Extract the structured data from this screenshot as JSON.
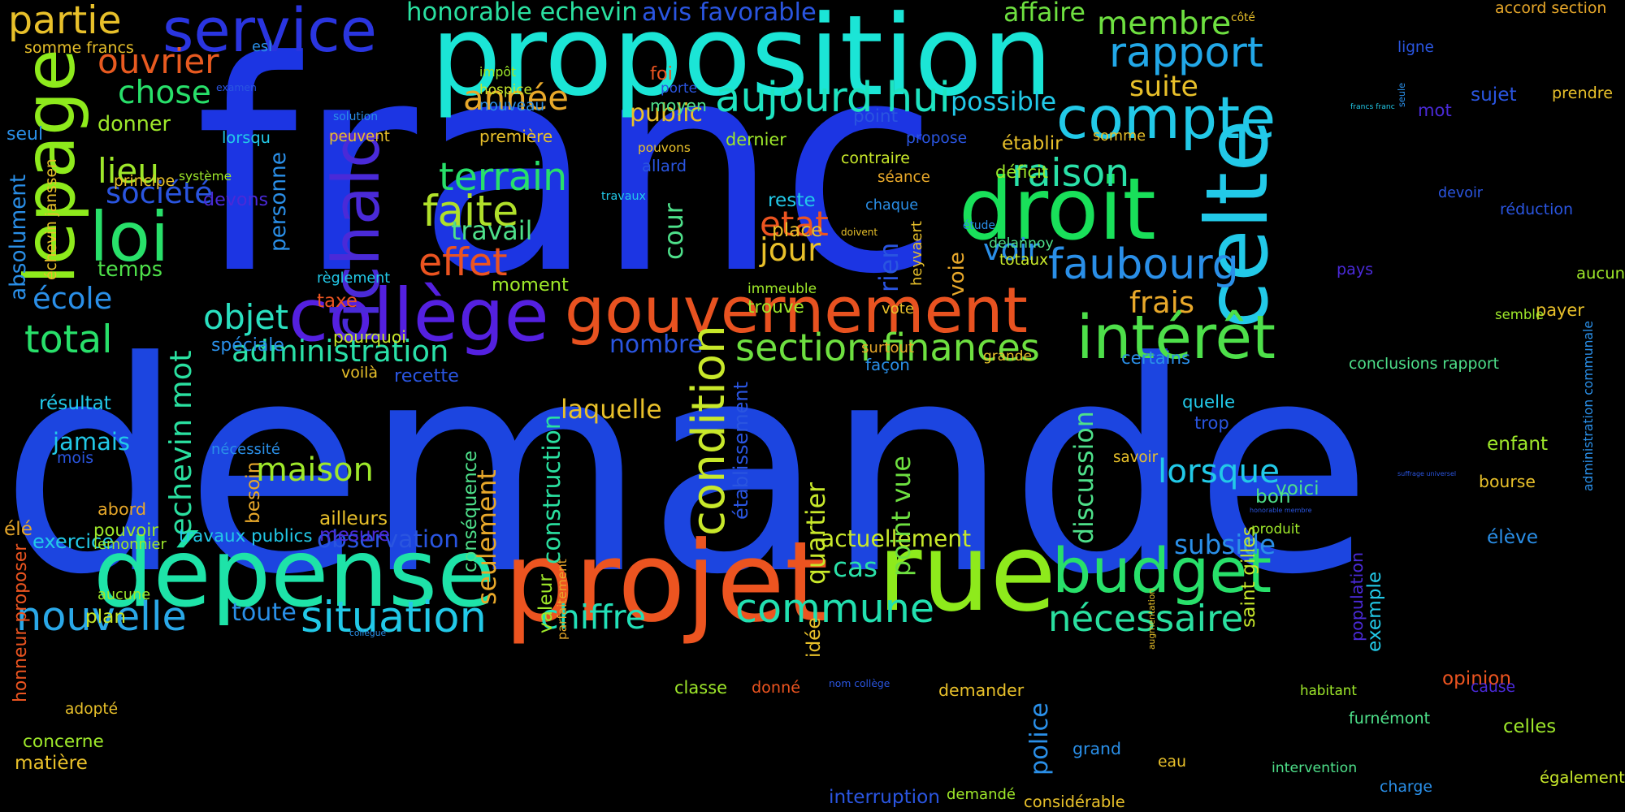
{
  "words": [
    {
      "text": "demande",
      "color": "#1c45e0"
    },
    {
      "text": "franc",
      "color": "#1c35e3"
    },
    {
      "text": "proposition",
      "color": "#1be5d6"
    },
    {
      "text": "droit",
      "color": "#19e05a"
    },
    {
      "text": "projet",
      "color": "#ec5420"
    },
    {
      "text": "rue",
      "color": "#8eea1c"
    },
    {
      "text": "dépense",
      "color": "#1ee3a8"
    },
    {
      "text": "gouvernement",
      "color": "#e85220"
    },
    {
      "text": "collège",
      "color": "#5420e0"
    },
    {
      "text": "compte",
      "color": "#22c9e8"
    },
    {
      "text": "celte",
      "color": "#22c9e8"
    },
    {
      "text": "lepage",
      "color": "#8eea1c"
    },
    {
      "text": "service",
      "color": "#2a35e0"
    },
    {
      "text": "budget",
      "color": "#28e06a"
    },
    {
      "text": "loi",
      "color": "#28e06a"
    },
    {
      "text": "richald",
      "color": "#4a2ad8"
    },
    {
      "text": "intérêt",
      "color": "#4ee04a"
    },
    {
      "text": "aujourd hui",
      "color": "#1ee3c0"
    },
    {
      "text": "faubourg",
      "color": "#2a8fe8"
    },
    {
      "text": "commune",
      "color": "#22e0b0"
    },
    {
      "text": "nouvelle",
      "color": "#2aa8e8"
    },
    {
      "text": "situation",
      "color": "#22c9e8"
    },
    {
      "text": "section finances",
      "color": "#6ee040"
    },
    {
      "text": "terrain",
      "color": "#28e06a"
    },
    {
      "text": "année",
      "color": "#e8a82a"
    },
    {
      "text": "effet",
      "color": "#ec5420"
    },
    {
      "text": "faite",
      "color": "#b0e02a"
    },
    {
      "text": "condition",
      "color": "#c8e82a"
    },
    {
      "text": "partie",
      "color": "#e8c02a"
    },
    {
      "text": "membre",
      "color": "#6ee040"
    },
    {
      "text": "rapport",
      "color": "#22a8e8"
    },
    {
      "text": "maison",
      "color": "#9ee82a"
    },
    {
      "text": "nécessaire",
      "color": "#2ae0a0"
    },
    {
      "text": "lorsque",
      "color": "#22c9e8"
    },
    {
      "text": "subside",
      "color": "#2a8fe8"
    },
    {
      "text": "total",
      "color": "#28e06a"
    },
    {
      "text": "raison",
      "color": "#2ae0a8"
    },
    {
      "text": "chose",
      "color": "#28e06a"
    },
    {
      "text": "ouvrier",
      "color": "#e85a20"
    },
    {
      "text": "etat",
      "color": "#ec5420"
    },
    {
      "text": "jour",
      "color": "#e8c02a"
    },
    {
      "text": "lieu",
      "color": "#9ee82a"
    },
    {
      "text": "société",
      "color": "#2a55e0"
    },
    {
      "text": "école",
      "color": "#2a8fe8"
    },
    {
      "text": "objet",
      "color": "#2ae0c0"
    },
    {
      "text": "administration",
      "color": "#2ae0a8"
    },
    {
      "text": "echevin mot",
      "color": "#2ae0a0"
    },
    {
      "text": "suite",
      "color": "#e8c02a"
    },
    {
      "text": "possible",
      "color": "#22c9e8"
    },
    {
      "text": "frais",
      "color": "#e8a82a"
    },
    {
      "text": "chiffre",
      "color": "#22e0b8"
    },
    {
      "text": "actuellement",
      "color": "#c8e82a"
    },
    {
      "text": "cas",
      "color": "#2ae0a8"
    },
    {
      "text": "quartier",
      "color": "#c8e82a"
    },
    {
      "text": "point vue",
      "color": "#6ee040"
    },
    {
      "text": "discussion",
      "color": "#4ee08a"
    },
    {
      "text": "rien",
      "color": "#2a55e0"
    },
    {
      "text": "voir",
      "color": "#2a8fe8"
    },
    {
      "text": "construction",
      "color": "#2ae0a0"
    },
    {
      "text": "seulement",
      "color": "#e8a82a"
    },
    {
      "text": "laquelle",
      "color": "#e8c02a"
    },
    {
      "text": "moment",
      "color": "#9ee82a"
    },
    {
      "text": "nombre",
      "color": "#2a55e0"
    },
    {
      "text": "travail",
      "color": "#4ee08a"
    },
    {
      "text": "établissement",
      "color": "#2a55e0"
    },
    {
      "text": "absolument",
      "color": "#2a8fe8"
    },
    {
      "text": "temps",
      "color": "#4ee04a"
    },
    {
      "text": "donner",
      "color": "#9ee82a"
    },
    {
      "text": "personne",
      "color": "#2a8fe8"
    },
    {
      "text": "jamais",
      "color": "#22c9e8"
    },
    {
      "text": "élé",
      "color": "#e8a82a"
    },
    {
      "text": "exercice",
      "color": "#22c9e8"
    },
    {
      "text": "travaux publics",
      "color": "#22c9e8"
    },
    {
      "text": "observation",
      "color": "#2a55e0"
    },
    {
      "text": "toute",
      "color": "#2a8fe8"
    },
    {
      "text": "cour",
      "color": "#4ee08a"
    },
    {
      "text": "somme",
      "color": "#e8c02a"
    },
    {
      "text": "point",
      "color": "#2a55e0"
    },
    {
      "text": "public",
      "color": "#e8c02a"
    },
    {
      "text": "moyen",
      "color": "#4ee08a"
    },
    {
      "text": "affaire",
      "color": "#6ee040"
    },
    {
      "text": "honorable echevin",
      "color": "#2ae0a0"
    },
    {
      "text": "avis favorable",
      "color": "#2a55e0"
    },
    {
      "text": "accord section",
      "color": "#e8a82a"
    },
    {
      "text": "côté",
      "color": "#e8c02a"
    },
    {
      "text": "ligne",
      "color": "#2a55e0"
    },
    {
      "text": "esl",
      "color": "#2a8fe8"
    },
    {
      "text": "somme francs",
      "color": "#e8c02a"
    },
    {
      "text": "examen",
      "color": "#2a55e0"
    },
    {
      "text": "impôt",
      "color": "#9ee82a"
    },
    {
      "text": "hospice",
      "color": "#c8e82a"
    },
    {
      "text": "nouveau",
      "color": "#2a8fe8"
    },
    {
      "text": "foi",
      "color": "#ec5420"
    },
    {
      "text": "porte",
      "color": "#2a55e0"
    },
    {
      "text": "solution",
      "color": "#2a8fe8"
    },
    {
      "text": "seul",
      "color": "#2a8fe8"
    },
    {
      "text": "lorsqu",
      "color": "#22c9e8"
    },
    {
      "text": "peuvent",
      "color": "#e8c02a"
    },
    {
      "text": "première",
      "color": "#e8c02a"
    },
    {
      "text": "dernier",
      "color": "#9ee82a"
    },
    {
      "text": "propose",
      "color": "#2a55e0"
    },
    {
      "text": "pouvons",
      "color": "#e8c02a"
    },
    {
      "text": "allard",
      "color": "#2a55e0"
    },
    {
      "text": "contraire",
      "color": "#c8e82a"
    },
    {
      "text": "séance",
      "color": "#e8a82a"
    },
    {
      "text": "déficit",
      "color": "#9ee82a"
    },
    {
      "text": "établir",
      "color": "#e8c02a"
    },
    {
      "text": "francs franc",
      "color": "#22c9e8"
    },
    {
      "text": "seule",
      "color": "#2a8fe8"
    },
    {
      "text": "mot",
      "color": "#4a2ad8"
    },
    {
      "text": "sujet",
      "color": "#2a55e0"
    },
    {
      "text": "prendre",
      "color": "#e8c02a"
    },
    {
      "text": "principe",
      "color": "#e8c02a"
    },
    {
      "text": "système",
      "color": "#9ee82a"
    },
    {
      "text": "devons",
      "color": "#4a2ad8"
    },
    {
      "text": "travaux",
      "color": "#22c9e8"
    },
    {
      "text": "reste",
      "color": "#22c9e8"
    },
    {
      "text": "chaque",
      "color": "#2a8fe8"
    },
    {
      "text": "place",
      "color": "#e8c02a"
    },
    {
      "text": "doivent",
      "color": "#e8c02a"
    },
    {
      "text": "étude",
      "color": "#2a8fe8"
    },
    {
      "text": "delannoy",
      "color": "#4ee08a"
    },
    {
      "text": "totaux",
      "color": "#c8e82a"
    },
    {
      "text": "heyvaert",
      "color": "#e8c02a"
    },
    {
      "text": "pays",
      "color": "#4a2ad8"
    },
    {
      "text": "devoir",
      "color": "#2a55e0"
    },
    {
      "text": "réduction",
      "color": "#2a55e0"
    },
    {
      "text": "aucun",
      "color": "#9ee82a"
    },
    {
      "text": "payer",
      "color": "#e8c02a"
    },
    {
      "text": "semble",
      "color": "#9ee82a"
    },
    {
      "text": "échevin janssen",
      "color": "#e8c02a"
    },
    {
      "text": "règlement",
      "color": "#22c9e8"
    },
    {
      "text": "taxe",
      "color": "#ec5420"
    },
    {
      "text": "immeuble",
      "color": "#9ee82a"
    },
    {
      "text": "trouve",
      "color": "#9ee82a"
    },
    {
      "text": "vote",
      "color": "#e8c02a"
    },
    {
      "text": "voie",
      "color": "#e8a82a"
    },
    {
      "text": "spéciale",
      "color": "#2a8fe8"
    },
    {
      "text": "pourquoi",
      "color": "#c8e82a"
    },
    {
      "text": "recette",
      "color": "#2a55e0"
    },
    {
      "text": "voilà",
      "color": "#e8c02a"
    },
    {
      "text": "surtout",
      "color": "#e8a82a"
    },
    {
      "text": "façon",
      "color": "#2a8fe8"
    },
    {
      "text": "grande",
      "color": "#e8c02a"
    },
    {
      "text": "certains",
      "color": "#2a8fe8"
    },
    {
      "text": "conclusions rapport",
      "color": "#4ee08a"
    },
    {
      "text": "administration communale",
      "color": "#2a8fe8"
    },
    {
      "text": "résultat",
      "color": "#22c9e8"
    },
    {
      "text": "nécessité",
      "color": "#2a8fe8"
    },
    {
      "text": "mois",
      "color": "#2a55e0"
    },
    {
      "text": "quelle",
      "color": "#22c9e8"
    },
    {
      "text": "trop",
      "color": "#2a55e0"
    },
    {
      "text": "savoir",
      "color": "#e8c02a"
    },
    {
      "text": "honneur proposer",
      "color": "#ec5420"
    },
    {
      "text": "abord",
      "color": "#e8a82a"
    },
    {
      "text": "pouvoir",
      "color": "#9ee82a"
    },
    {
      "text": "lemonnier",
      "color": "#9ee82a"
    },
    {
      "text": "besoin",
      "color": "#e8a82a"
    },
    {
      "text": "ailleurs",
      "color": "#e8c02a"
    },
    {
      "text": "mesure",
      "color": "#4a2ad8"
    },
    {
      "text": "conséquence",
      "color": "#4ee08a"
    },
    {
      "text": "valeur",
      "color": "#9ee82a"
    },
    {
      "text": "parfaitement",
      "color": "#e8a82a"
    },
    {
      "text": "idée",
      "color": "#e8c02a"
    },
    {
      "text": "augmentation",
      "color": "#e8c02a"
    },
    {
      "text": "saint gilles",
      "color": "#c8e82a"
    },
    {
      "text": "honorable membre",
      "color": "#2a55e0"
    },
    {
      "text": "produit",
      "color": "#9ee82a"
    },
    {
      "text": "voici",
      "color": "#4ee08a"
    },
    {
      "text": "bon",
      "color": "#4ee08a"
    },
    {
      "text": "exemple",
      "color": "#22c9e8"
    },
    {
      "text": "suffrage universel",
      "color": "#2a55e0"
    },
    {
      "text": "élève",
      "color": "#2a8fe8"
    },
    {
      "text": "population",
      "color": "#4a2ad8"
    },
    {
      "text": "enfant",
      "color": "#9ee82a"
    },
    {
      "text": "bourse",
      "color": "#e8c02a"
    },
    {
      "text": "aucune",
      "color": "#9ee82a"
    },
    {
      "text": "plan",
      "color": "#c8e82a"
    },
    {
      "text": "collègue",
      "color": "#2a8fe8"
    },
    {
      "text": "police",
      "color": "#2a8fe8"
    },
    {
      "text": "opinion",
      "color": "#ec5420"
    },
    {
      "text": "cause",
      "color": "#4a2ad8"
    },
    {
      "text": "classe",
      "color": "#9ee82a"
    },
    {
      "text": "donné",
      "color": "#ec5420"
    },
    {
      "text": "nom collège",
      "color": "#2a55e0"
    },
    {
      "text": "demander",
      "color": "#e8c02a"
    },
    {
      "text": "habitant",
      "color": "#9ee82a"
    },
    {
      "text": "furnémont",
      "color": "#4ee08a"
    },
    {
      "text": "celles",
      "color": "#9ee82a"
    },
    {
      "text": "adopté",
      "color": "#e8c02a"
    },
    {
      "text": "concerne",
      "color": "#9ee82a"
    },
    {
      "text": "matière",
      "color": "#e8c02a"
    },
    {
      "text": "grand",
      "color": "#2a8fe8"
    },
    {
      "text": "eau",
      "color": "#e8c02a"
    },
    {
      "text": "intervention",
      "color": "#4ee08a"
    },
    {
      "text": "charge",
      "color": "#2a8fe8"
    },
    {
      "text": "également",
      "color": "#c8e82a"
    },
    {
      "text": "interruption",
      "color": "#2a55e0"
    },
    {
      "text": "demandé",
      "color": "#9ee82a"
    },
    {
      "text": "considérable",
      "color": "#e8c02a"
    }
  ]
}
